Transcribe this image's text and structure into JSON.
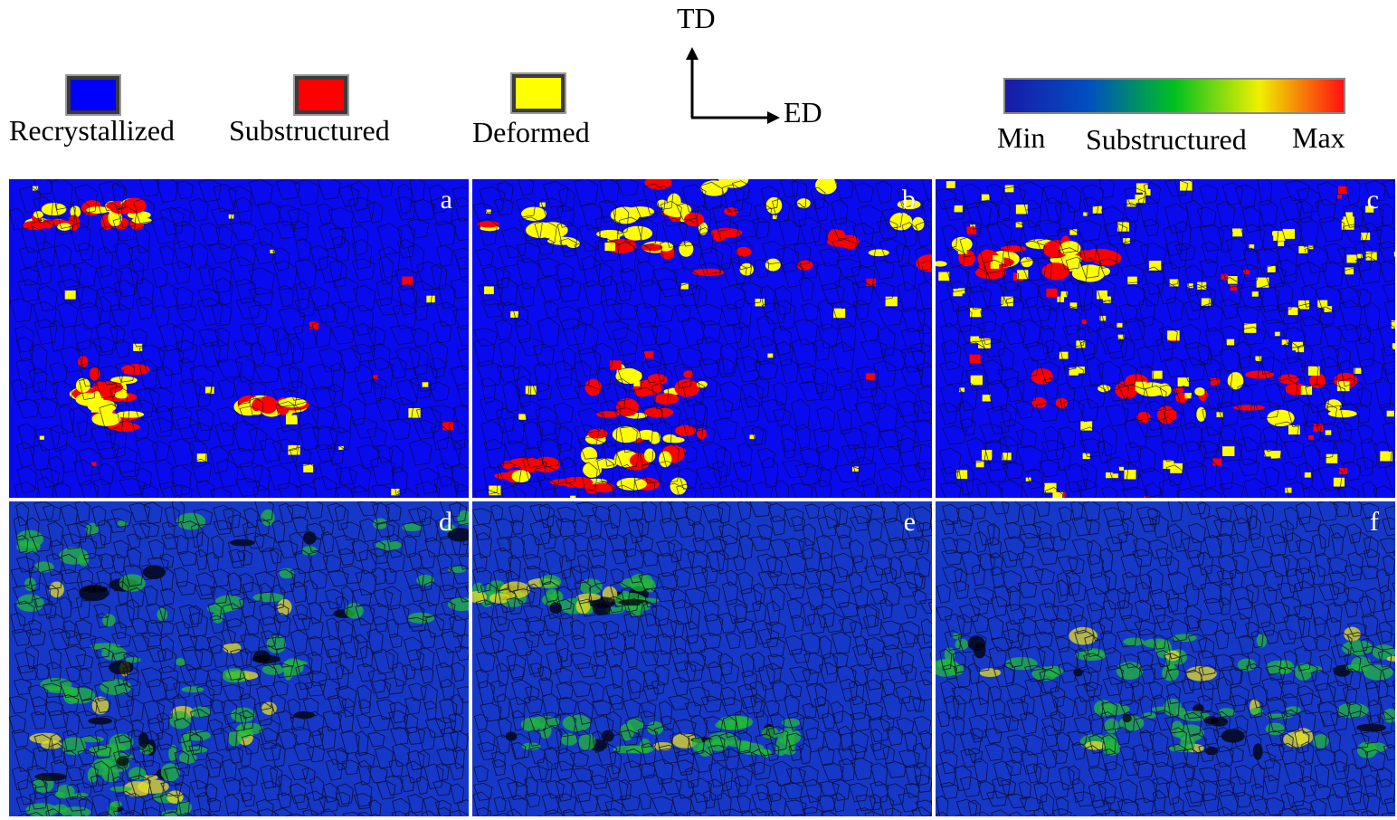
{
  "legend": {
    "items": [
      {
        "label": "Recrystallized",
        "color": "#0000ff"
      },
      {
        "label": "Substructured",
        "color": "#ff0000"
      },
      {
        "label": "Deformed",
        "color": "#ffff00"
      }
    ]
  },
  "axes": {
    "td": "TD",
    "ed": "ED"
  },
  "colorbar": {
    "min_label": "Min",
    "mid_label": "Substructured",
    "max_label": "Max",
    "colors": [
      "#1a1aa8",
      "#0050c0",
      "#00c020",
      "#f0f000",
      "#ff1010"
    ]
  },
  "panels": [
    {
      "letter": "a",
      "type": "category"
    },
    {
      "letter": "b",
      "type": "category"
    },
    {
      "letter": "c",
      "type": "category"
    },
    {
      "letter": "d",
      "type": "kam"
    },
    {
      "letter": "e",
      "type": "kam"
    },
    {
      "letter": "f",
      "type": "kam"
    }
  ]
}
